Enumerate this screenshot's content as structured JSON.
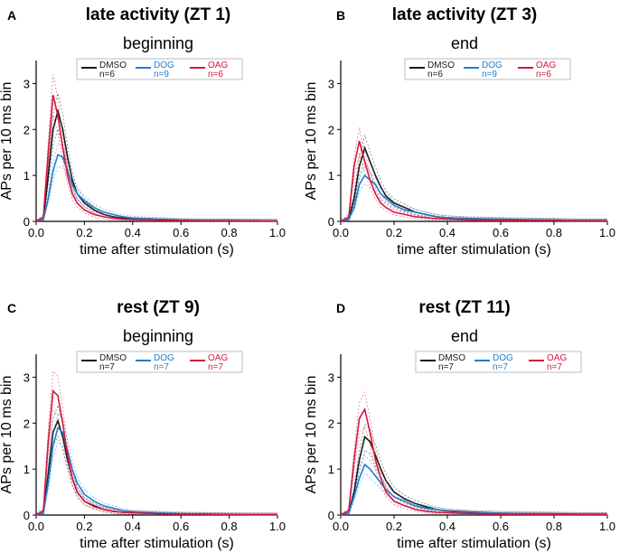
{
  "figure": {
    "legend_entries": [
      "DMSO",
      "DOG",
      "OAG"
    ],
    "colors": {
      "DMSO": "#1a1a1a",
      "DOG": "#1f7fd0",
      "OAG": "#d6163c"
    }
  },
  "chart_data": [
    {
      "type": "line",
      "letter": "A",
      "title": "late activity (ZT 1)",
      "subtitle": "beginning",
      "xlabel": "time after stimulation (s)",
      "ylabel": "APs per 10 ms bin",
      "xlim": [
        0,
        1
      ],
      "ylim": [
        0,
        3.5
      ],
      "xticks": [
        "0.0",
        "0.2",
        "0.4",
        "0.6",
        "0.8",
        "1.0"
      ],
      "yticks": [
        "0",
        "1",
        "2",
        "3"
      ],
      "legend": {
        "DMSO": "n=6",
        "DOG": "n=9",
        "OAG": "n=6"
      },
      "series": [
        {
          "name": "DMSO",
          "x": [
            0,
            0.03,
            0.05,
            0.07,
            0.09,
            0.11,
            0.13,
            0.15,
            0.17,
            0.2,
            0.24,
            0.28,
            0.32,
            0.36,
            0.4,
            0.5,
            0.6,
            0.7,
            0.8,
            0.9,
            1.0
          ],
          "y": [
            0,
            0.05,
            1.0,
            2.0,
            2.4,
            2.0,
            1.4,
            0.9,
            0.6,
            0.4,
            0.25,
            0.15,
            0.1,
            0.07,
            0.05,
            0.03,
            0.02,
            0.02,
            0.02,
            0.01,
            0.01
          ]
        },
        {
          "name": "DOG",
          "x": [
            0,
            0.03,
            0.05,
            0.07,
            0.09,
            0.11,
            0.13,
            0.15,
            0.17,
            0.2,
            0.24,
            0.28,
            0.32,
            0.36,
            0.4,
            0.5,
            0.6,
            0.7,
            0.8,
            0.9,
            1.0
          ],
          "y": [
            0,
            0.05,
            0.5,
            1.1,
            1.45,
            1.4,
            1.1,
            0.8,
            0.6,
            0.45,
            0.3,
            0.2,
            0.15,
            0.1,
            0.07,
            0.05,
            0.03,
            0.02,
            0.02,
            0.02,
            0.01
          ]
        },
        {
          "name": "OAG",
          "x": [
            0,
            0.03,
            0.05,
            0.07,
            0.09,
            0.11,
            0.13,
            0.15,
            0.17,
            0.2,
            0.24,
            0.28,
            0.32,
            0.36,
            0.4,
            0.5,
            0.6,
            0.7,
            0.8,
            0.9,
            1.0
          ],
          "y": [
            0,
            0.1,
            1.5,
            2.75,
            2.3,
            1.6,
            1.0,
            0.6,
            0.4,
            0.25,
            0.15,
            0.1,
            0.07,
            0.05,
            0.04,
            0.03,
            0.02,
            0.01,
            0.01,
            0.01,
            0.01
          ]
        }
      ]
    },
    {
      "type": "line",
      "letter": "B",
      "title": "late activity (ZT 3)",
      "subtitle": "end",
      "xlabel": "time after stimulation (s)",
      "ylabel": "APs per 10 ms bin",
      "xlim": [
        0,
        1
      ],
      "ylim": [
        0,
        3.5
      ],
      "xticks": [
        "0.0",
        "0.2",
        "0.4",
        "0.6",
        "0.8",
        "1.0"
      ],
      "yticks": [
        "0",
        "1",
        "2",
        "3"
      ],
      "legend": {
        "DMSO": "n=6",
        "DOG": "n=9",
        "OAG": "n=6"
      },
      "series": [
        {
          "name": "DMSO",
          "x": [
            0,
            0.03,
            0.05,
            0.07,
            0.09,
            0.11,
            0.13,
            0.15,
            0.17,
            0.2,
            0.24,
            0.28,
            0.32,
            0.36,
            0.4,
            0.5,
            0.6,
            0.7,
            0.8,
            0.9,
            1.0
          ],
          "y": [
            0,
            0.05,
            0.5,
            1.2,
            1.6,
            1.3,
            1.0,
            0.75,
            0.55,
            0.4,
            0.3,
            0.2,
            0.15,
            0.1,
            0.08,
            0.05,
            0.04,
            0.03,
            0.03,
            0.02,
            0.02
          ]
        },
        {
          "name": "DOG",
          "x": [
            0,
            0.03,
            0.05,
            0.07,
            0.09,
            0.11,
            0.13,
            0.15,
            0.17,
            0.2,
            0.24,
            0.28,
            0.32,
            0.36,
            0.4,
            0.5,
            0.6,
            0.7,
            0.8,
            0.9,
            1.0
          ],
          "y": [
            0,
            0.05,
            0.3,
            0.8,
            1.0,
            0.9,
            0.8,
            0.6,
            0.5,
            0.35,
            0.25,
            0.2,
            0.15,
            0.1,
            0.08,
            0.06,
            0.05,
            0.04,
            0.03,
            0.02,
            0.02
          ]
        },
        {
          "name": "OAG",
          "x": [
            0,
            0.03,
            0.05,
            0.07,
            0.09,
            0.11,
            0.13,
            0.15,
            0.17,
            0.2,
            0.24,
            0.28,
            0.32,
            0.36,
            0.4,
            0.5,
            0.6,
            0.7,
            0.8,
            0.9,
            1.0
          ],
          "y": [
            0,
            0.1,
            1.2,
            1.75,
            1.3,
            0.9,
            0.6,
            0.4,
            0.3,
            0.2,
            0.15,
            0.1,
            0.08,
            0.06,
            0.05,
            0.03,
            0.03,
            0.02,
            0.02,
            0.01,
            0.01
          ]
        }
      ]
    },
    {
      "type": "line",
      "letter": "C",
      "title": "rest (ZT 9)",
      "subtitle": "beginning",
      "xlabel": "time after stimulation (s)",
      "ylabel": "APs per 10 ms bin",
      "xlim": [
        0,
        1
      ],
      "ylim": [
        0,
        3.5
      ],
      "xticks": [
        "0.0",
        "0.2",
        "0.4",
        "0.6",
        "0.8",
        "1.0"
      ],
      "yticks": [
        "0",
        "1",
        "2",
        "3"
      ],
      "legend": {
        "DMSO": "n=7",
        "DOG": "n=7",
        "OAG": "n=7"
      },
      "series": [
        {
          "name": "DMSO",
          "x": [
            0,
            0.03,
            0.05,
            0.07,
            0.09,
            0.11,
            0.13,
            0.15,
            0.17,
            0.2,
            0.24,
            0.28,
            0.32,
            0.36,
            0.4,
            0.5,
            0.6,
            0.7,
            0.8,
            0.9,
            1.0
          ],
          "y": [
            0,
            0.05,
            0.9,
            1.8,
            2.05,
            1.7,
            1.2,
            0.8,
            0.5,
            0.3,
            0.2,
            0.12,
            0.08,
            0.06,
            0.05,
            0.03,
            0.02,
            0.02,
            0.01,
            0.01,
            0.01
          ]
        },
        {
          "name": "DOG",
          "x": [
            0,
            0.03,
            0.05,
            0.07,
            0.09,
            0.11,
            0.13,
            0.15,
            0.17,
            0.2,
            0.24,
            0.28,
            0.32,
            0.36,
            0.4,
            0.5,
            0.6,
            0.7,
            0.8,
            0.9,
            1.0
          ],
          "y": [
            0,
            0.05,
            0.7,
            1.5,
            1.9,
            1.8,
            1.4,
            1.0,
            0.7,
            0.45,
            0.3,
            0.2,
            0.15,
            0.1,
            0.07,
            0.05,
            0.03,
            0.02,
            0.02,
            0.01,
            0.01
          ]
        },
        {
          "name": "OAG",
          "x": [
            0,
            0.03,
            0.05,
            0.07,
            0.09,
            0.11,
            0.13,
            0.15,
            0.17,
            0.2,
            0.24,
            0.28,
            0.32,
            0.36,
            0.4,
            0.5,
            0.6,
            0.7,
            0.8,
            0.9,
            1.0
          ],
          "y": [
            0,
            0.1,
            1.6,
            2.7,
            2.6,
            2.0,
            1.3,
            0.8,
            0.5,
            0.3,
            0.18,
            0.12,
            0.08,
            0.06,
            0.05,
            0.03,
            0.02,
            0.02,
            0.01,
            0.01,
            0.01
          ]
        }
      ]
    },
    {
      "type": "line",
      "letter": "D",
      "title": "rest (ZT 11)",
      "subtitle": "end",
      "xlabel": "time after stimulation (s)",
      "ylabel": "APs per 10 ms bin",
      "xlim": [
        0,
        1
      ],
      "ylim": [
        0,
        3.5
      ],
      "xticks": [
        "0.0",
        "0.2",
        "0.4",
        "0.6",
        "0.8",
        "1.0"
      ],
      "yticks": [
        "0",
        "1",
        "2",
        "3"
      ],
      "legend": {
        "DMSO": "n=7",
        "DOG": "n=7",
        "OAG": "n=7"
      },
      "series": [
        {
          "name": "DMSO",
          "x": [
            0,
            0.03,
            0.05,
            0.07,
            0.09,
            0.11,
            0.13,
            0.15,
            0.17,
            0.2,
            0.24,
            0.28,
            0.32,
            0.36,
            0.4,
            0.5,
            0.6,
            0.7,
            0.8,
            0.9,
            1.0
          ],
          "y": [
            0,
            0.05,
            0.5,
            1.2,
            1.7,
            1.6,
            1.3,
            1.0,
            0.75,
            0.5,
            0.35,
            0.25,
            0.18,
            0.12,
            0.09,
            0.06,
            0.04,
            0.03,
            0.03,
            0.02,
            0.02
          ]
        },
        {
          "name": "DOG",
          "x": [
            0,
            0.03,
            0.05,
            0.07,
            0.09,
            0.11,
            0.13,
            0.15,
            0.17,
            0.2,
            0.24,
            0.28,
            0.32,
            0.36,
            0.4,
            0.5,
            0.6,
            0.7,
            0.8,
            0.9,
            1.0
          ],
          "y": [
            0,
            0.05,
            0.4,
            0.8,
            1.1,
            1.0,
            0.85,
            0.7,
            0.55,
            0.4,
            0.3,
            0.2,
            0.15,
            0.12,
            0.08,
            0.05,
            0.04,
            0.03,
            0.02,
            0.02,
            0.02
          ]
        },
        {
          "name": "OAG",
          "x": [
            0,
            0.03,
            0.05,
            0.07,
            0.09,
            0.11,
            0.13,
            0.15,
            0.17,
            0.2,
            0.24,
            0.28,
            0.32,
            0.36,
            0.4,
            0.5,
            0.6,
            0.7,
            0.8,
            0.9,
            1.0
          ],
          "y": [
            0,
            0.1,
            1.2,
            2.1,
            2.3,
            1.8,
            1.2,
            0.8,
            0.5,
            0.3,
            0.2,
            0.12,
            0.08,
            0.06,
            0.05,
            0.03,
            0.02,
            0.02,
            0.01,
            0.01,
            0.01
          ]
        }
      ]
    }
  ]
}
